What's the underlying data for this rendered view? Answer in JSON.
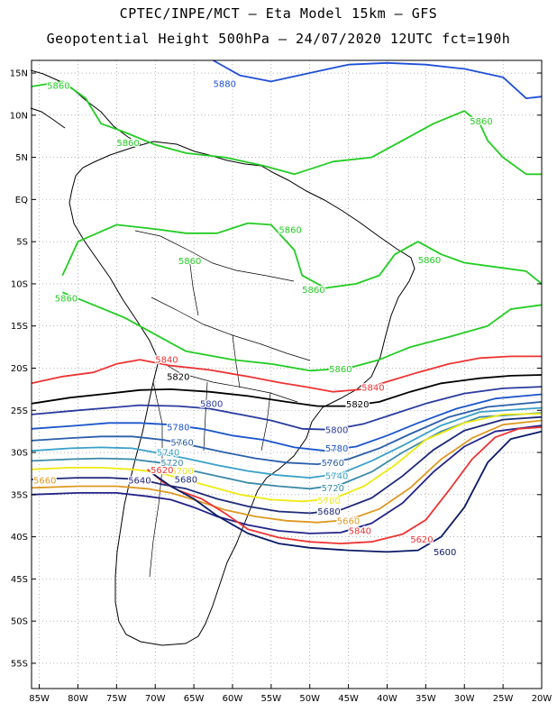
{
  "header": {
    "line1": "CPTEC/INPE/MCT –  Eta Model 15km – GFS",
    "line2": "Geopotential Height 500hPa – 24/07/2020 12UTC fct=190h"
  },
  "axes": {
    "lat_labels": [
      "15N",
      "10N",
      "5N",
      "EQ",
      "5S",
      "10S",
      "15S",
      "20S",
      "25S",
      "30S",
      "35S",
      "40S",
      "45S",
      "50S",
      "55S"
    ],
    "lat_values": [
      15,
      10,
      5,
      0,
      -5,
      -10,
      -15,
      -20,
      -25,
      -30,
      -35,
      -40,
      -45,
      -50,
      -55
    ],
    "lon_labels": [
      "85W",
      "80W",
      "75W",
      "70W",
      "65W",
      "60W",
      "55W",
      "50W",
      "45W",
      "40W",
      "35W",
      "30W",
      "25W",
      "20W"
    ],
    "lon_values": [
      -85,
      -80,
      -75,
      -70,
      -65,
      -60,
      -55,
      -50,
      -45,
      -40,
      -35,
      -30,
      -25,
      -20
    ],
    "lat_range": [
      -58,
      16.5
    ],
    "lon_range": [
      -86,
      -20
    ]
  },
  "contours": [
    {
      "level": 5880,
      "color": "#1f4fd8",
      "labels": [
        {
          "text": "5880",
          "lon": -62.5,
          "lat": 13.7
        }
      ]
    },
    {
      "level": 5860,
      "color": "#22cc22",
      "labels": [
        {
          "text": "5860",
          "lon": -84,
          "lat": 13.5
        },
        {
          "text": "5860",
          "lon": -75,
          "lat": 6.7
        },
        {
          "text": "5860",
          "lon": -67,
          "lat": -7.3
        },
        {
          "text": "5860",
          "lon": -83,
          "lat": -11.7
        },
        {
          "text": "5860",
          "lon": -54,
          "lat": -3.6
        },
        {
          "text": "5860",
          "lon": -51,
          "lat": -10.7
        },
        {
          "text": "5860",
          "lon": -36,
          "lat": -7.2
        },
        {
          "text": "5860",
          "lon": -29.3,
          "lat": 9.3
        },
        {
          "text": "5860",
          "lon": -47.5,
          "lat": -20.1
        }
      ]
    },
    {
      "level": 5840,
      "color": "#ee3333",
      "labels": [
        {
          "text": "5840",
          "lon": -70,
          "lat": -19
        },
        {
          "text": "5840",
          "lon": -43.3,
          "lat": -22.3
        },
        {
          "text": "5840",
          "lon": -45,
          "lat": -39.3
        }
      ]
    },
    {
      "level": 5820,
      "color": "#000000",
      "labels": [
        {
          "text": "5820",
          "lon": -68.5,
          "lat": -21
        },
        {
          "text": "5820",
          "lon": -45.3,
          "lat": -24.3
        }
      ]
    },
    {
      "level": 5800,
      "color": "#2a3a9e",
      "labels": [
        {
          "text": "5800",
          "lon": -64.2,
          "lat": -24.2
        },
        {
          "text": "5800",
          "lon": -48,
          "lat": -27.3
        }
      ]
    },
    {
      "level": 5780,
      "color": "#1a55cc",
      "labels": [
        {
          "text": "5780",
          "lon": -68.5,
          "lat": -27
        },
        {
          "text": "5780",
          "lon": -48,
          "lat": -29.5
        }
      ]
    },
    {
      "level": 5760,
      "color": "#2a5faa",
      "labels": [
        {
          "text": "5760",
          "lon": -68,
          "lat": -28.8
        },
        {
          "text": "5760",
          "lon": -48.5,
          "lat": -31.2
        }
      ]
    },
    {
      "level": 5740,
      "color": "#3aa0c8",
      "labels": [
        {
          "text": "5740",
          "lon": -69.8,
          "lat": -30
        },
        {
          "text": "5740",
          "lon": -48,
          "lat": -32.8
        }
      ]
    },
    {
      "level": 5720,
      "color": "#3a8aa6",
      "labels": [
        {
          "text": "5720",
          "lon": -69.3,
          "lat": -31.2
        },
        {
          "text": "5720",
          "lon": -48.5,
          "lat": -34.2
        }
      ]
    },
    {
      "level": 5700,
      "color": "#eeea11",
      "labels": [
        {
          "text": "5700",
          "lon": -68,
          "lat": -32.2
        },
        {
          "text": "5700",
          "lon": -49,
          "lat": -35.7
        }
      ]
    },
    {
      "level": 5680,
      "color": "#1e2a78",
      "labels": [
        {
          "text": "5680",
          "lon": -67.5,
          "lat": -33.2
        },
        {
          "text": "5680",
          "lon": -49,
          "lat": -37
        }
      ]
    },
    {
      "level": 5660,
      "color": "#dd9922",
      "labels": [
        {
          "text": "5660",
          "lon": -86,
          "lat": -33.3
        },
        {
          "text": "5660",
          "lon": -46.5,
          "lat": -38.1
        }
      ]
    },
    {
      "level": 5640,
      "color": "#222288",
      "labels": [
        {
          "text": "5640",
          "lon": -73.5,
          "lat": -33.3
        }
      ]
    },
    {
      "level": 5620,
      "color": "#ee3333",
      "labels": [
        {
          "text": "5620",
          "lon": -70.6,
          "lat": -32.1
        },
        {
          "text": "5620",
          "lon": -37,
          "lat": -40.3
        }
      ]
    },
    {
      "level": 5600,
      "color": "#0a1a66",
      "labels": [
        {
          "text": "5600",
          "lon": -34,
          "lat": -41.8
        }
      ]
    }
  ],
  "map_colors": {
    "frame": "#000000",
    "grid": "#888888",
    "coast": "#000000",
    "border": "#000000"
  }
}
